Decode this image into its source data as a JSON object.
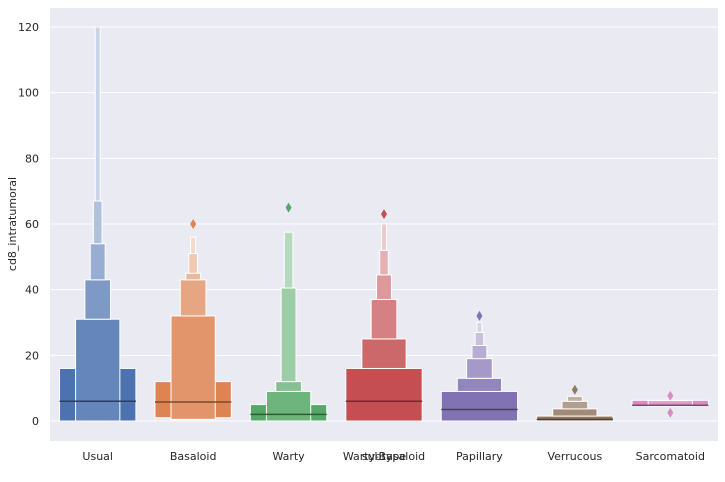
{
  "chart_data": {
    "type": "boxen",
    "xlabel": "subtype",
    "ylabel": "cd8_intratumoral",
    "ylim": [
      -6,
      126
    ],
    "yticks": [
      0,
      20,
      40,
      60,
      80,
      100,
      120
    ],
    "grid": true,
    "background": "#eaeaf2",
    "categories": [
      "Usual",
      "Basaloid",
      "Warty",
      "Warty-Basaloid",
      "Papillary",
      "Verrucous",
      "Sarcomatoid"
    ],
    "series": [
      {
        "category": "Usual",
        "color": "#4c72b0",
        "median": 6,
        "levels": [
          [
            0,
            16
          ],
          [
            0,
            31
          ],
          [
            31,
            43
          ],
          [
            43,
            54
          ],
          [
            54,
            67
          ],
          [
            67,
            120
          ]
        ],
        "outliers": []
      },
      {
        "category": "Basaloid",
        "color": "#dd8452",
        "median": 5.8,
        "levels": [
          [
            1,
            12
          ],
          [
            0.5,
            32
          ],
          [
            32,
            43
          ],
          [
            43,
            45
          ],
          [
            45,
            51
          ],
          [
            51,
            56
          ]
        ],
        "outliers": [
          60
        ]
      },
      {
        "category": "Warty",
        "color": "#55a868",
        "median": 2,
        "levels": [
          [
            0,
            5
          ],
          [
            0,
            9
          ],
          [
            9,
            12
          ],
          [
            12,
            40.5
          ],
          [
            40.5,
            57.5
          ]
        ],
        "outliers": [
          65
        ]
      },
      {
        "category": "Warty-Basaloid",
        "color": "#c44e52",
        "median": 6,
        "levels": [
          [
            0,
            16
          ],
          [
            16,
            25
          ],
          [
            25,
            37
          ],
          [
            37,
            44.5
          ],
          [
            44.5,
            52
          ],
          [
            52,
            60
          ]
        ],
        "outliers": [
          63
        ]
      },
      {
        "category": "Papillary",
        "color": "#8172b3",
        "median": 3.5,
        "levels": [
          [
            0,
            9
          ],
          [
            9,
            13
          ],
          [
            13,
            19
          ],
          [
            19,
            23
          ],
          [
            23,
            27
          ],
          [
            27,
            30
          ]
        ],
        "outliers": [
          32
        ]
      },
      {
        "category": "Verrucous",
        "color": "#937860",
        "median": 0.5,
        "levels": [
          [
            0,
            1.5
          ],
          [
            1.5,
            3.7
          ],
          [
            3.7,
            6
          ],
          [
            6,
            7.5
          ]
        ],
        "outliers": [
          9.5
        ]
      },
      {
        "category": "Sarcomatoid",
        "color": "#da8bc3",
        "median": 4.8,
        "levels": [
          [
            4.8,
            6.3
          ],
          [
            4.5,
            6.2
          ]
        ],
        "outliers": [
          2.5,
          7.7
        ]
      }
    ]
  }
}
